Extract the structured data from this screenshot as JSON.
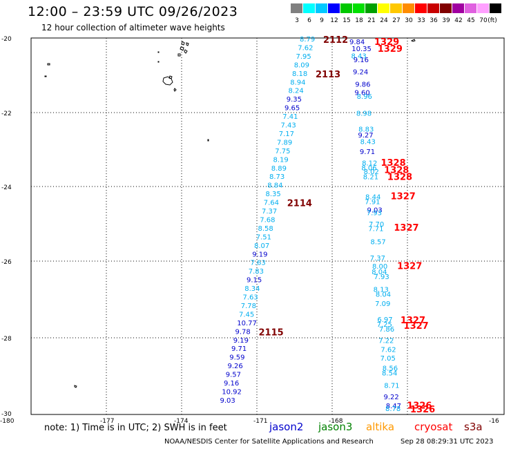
{
  "title": "12:00 – 23:59 UTC 09/26/2023",
  "subtitle": "12 hour collection of altimeter wave heights",
  "legend": {
    "unit": "(ft)",
    "bins": [
      {
        "label": "3",
        "color": "#808080"
      },
      {
        "label": "6",
        "color": "#00ffff"
      },
      {
        "label": "9",
        "color": "#00c8ff"
      },
      {
        "label": "12",
        "color": "#0000ff"
      },
      {
        "label": "15",
        "color": "#00c800"
      },
      {
        "label": "18",
        "color": "#00e000"
      },
      {
        "label": "21",
        "color": "#00a000"
      },
      {
        "label": "24",
        "color": "#ffff00"
      },
      {
        "label": "27",
        "color": "#ffc800"
      },
      {
        "label": "30",
        "color": "#ff8c00"
      },
      {
        "label": "33",
        "color": "#ff0000"
      },
      {
        "label": "36",
        "color": "#c80000"
      },
      {
        "label": "39",
        "color": "#800000"
      },
      {
        "label": "42",
        "color": "#a000a0"
      },
      {
        "label": "45",
        "color": "#e060e0"
      },
      {
        "label": "70",
        "color": "#ffa0ff"
      },
      {
        "label": "",
        "color": "#000000"
      }
    ]
  },
  "axes": {
    "lon_labels": [
      "-180",
      "-177",
      "-174",
      "-171",
      "-168",
      "-16"
    ],
    "lat_labels": [
      "-20",
      "-22",
      "-24",
      "-26",
      "-28",
      "-30"
    ]
  },
  "colors": {
    "cyan": "#00aeef",
    "blue": "#0000cc",
    "red": "#ff0000",
    "dark_red": "#800000"
  },
  "track_a": {
    "values": [
      "8.79",
      "7.62",
      "7.95",
      "8.09",
      "8.18",
      "8.94",
      "8.24",
      "9.35",
      "9.65",
      "7.41",
      "7.43",
      "7.17",
      "7.89",
      "7.75",
      "8.19",
      "8.89",
      "8.73",
      "8.84",
      "8.35",
      "7.64",
      "7.37",
      "7.68",
      "8.58",
      "7.51",
      "8.07",
      "9.19",
      "7.63",
      "7.83",
      "9.15",
      "8.34",
      "7.63",
      "7.78",
      "7.45",
      "10.77",
      "9.78",
      "9.19",
      "9.71",
      "9.59",
      "9.26",
      "9.57",
      "9.16",
      "10.92",
      "9.03"
    ],
    "colors": [
      "c",
      "c",
      "c",
      "c",
      "c",
      "c",
      "c",
      "b",
      "b",
      "c",
      "c",
      "c",
      "c",
      "c",
      "c",
      "c",
      "c",
      "c",
      "c",
      "c",
      "c",
      "c",
      "c",
      "c",
      "c",
      "b",
      "c",
      "c",
      "b",
      "c",
      "c",
      "c",
      "c",
      "b",
      "b",
      "b",
      "b",
      "b",
      "b",
      "b",
      "b",
      "b",
      "b"
    ],
    "cycles": [
      {
        "label": "2112",
        "index": 0
      },
      {
        "label": "2113",
        "index": 4
      },
      {
        "label": "2114",
        "index": 19
      },
      {
        "label": "2115",
        "index": 34
      }
    ]
  },
  "track_b": {
    "values": [
      "9.84",
      "10.35",
      "8.43",
      "9.16",
      "9.24",
      "9.86",
      "9.60",
      "8.96",
      "8.98",
      "8.83",
      "9.27",
      "8.43",
      "9.71",
      "8.12",
      "8.06",
      "8.02",
      "8.21",
      "8.44",
      "7.91",
      "9.03",
      "7.93",
      "7.70",
      "7.71",
      "8.57",
      "7.37",
      "8.00",
      "8.04",
      "7.93",
      "8.13",
      "8.04",
      "7.09",
      "6.97",
      "7.25",
      "7.86",
      "7.22",
      "7.62",
      "7.05",
      "8.56",
      "8.54",
      "8.71",
      "9.22",
      "8.47",
      "8.78"
    ],
    "colors": [
      "b",
      "b",
      "c",
      "b",
      "b",
      "b",
      "b",
      "c",
      "c",
      "c",
      "b",
      "c",
      "b",
      "c",
      "c",
      "c",
      "c",
      "c",
      "c",
      "b",
      "c",
      "c",
      "c",
      "c",
      "c",
      "c",
      "c",
      "c",
      "c",
      "c",
      "c",
      "c",
      "c",
      "c",
      "c",
      "c",
      "c",
      "c",
      "c",
      "c",
      "b",
      "b",
      "c"
    ],
    "lat": [
      -20.02,
      -20.2,
      -20.4,
      -20.5,
      -20.82,
      -21.15,
      -21.37,
      -21.47,
      -21.92,
      -22.35,
      -22.5,
      -22.68,
      -22.95,
      -23.25,
      -23.38,
      -23.48,
      -23.62,
      -24.15,
      -24.28,
      -24.5,
      -24.58,
      -24.88,
      -25.0,
      -25.35,
      -25.78,
      -26.0,
      -26.15,
      -26.28,
      -26.62,
      -26.75,
      -27.0,
      -27.42,
      -27.55,
      -27.68,
      -27.98,
      -28.22,
      -28.45,
      -28.72,
      -28.85,
      -29.18,
      -29.48,
      -29.72,
      -29.8
    ],
    "cycles": [
      {
        "label": "1329",
        "lat": -20.0
      },
      {
        "label": "1329",
        "lat": -20.18
      },
      {
        "label": "1328",
        "lat": -23.22
      },
      {
        "label": "1328",
        "lat": -23.42
      },
      {
        "label": "1328",
        "lat": -23.6
      },
      {
        "label": "1327",
        "lat": -24.12
      },
      {
        "label": "1327",
        "lat": -24.95
      },
      {
        "label": "1327",
        "lat": -25.98
      },
      {
        "label": "1327",
        "lat": -27.42
      },
      {
        "label": "1327",
        "lat": -27.57
      },
      {
        "label": "1326",
        "lat": -29.7
      },
      {
        "label": "1326",
        "lat": -29.8
      }
    ]
  },
  "note": "note: 1) Time is in UTC; 2) SWH is in feet",
  "satellites": [
    {
      "name": "jason2",
      "color": "#0000cc"
    },
    {
      "name": "jason3",
      "color": "#008000"
    },
    {
      "name": "altika",
      "color": "#ff9900"
    },
    {
      "name": "cryosat",
      "color": "#ff0000"
    },
    {
      "name": "s3a",
      "color": "#800000"
    }
  ],
  "credit": "NOAA/NESDIS Center for Satellite Applications and Research",
  "timestamp": "Sep 28 08:29:31 UTC 2023"
}
